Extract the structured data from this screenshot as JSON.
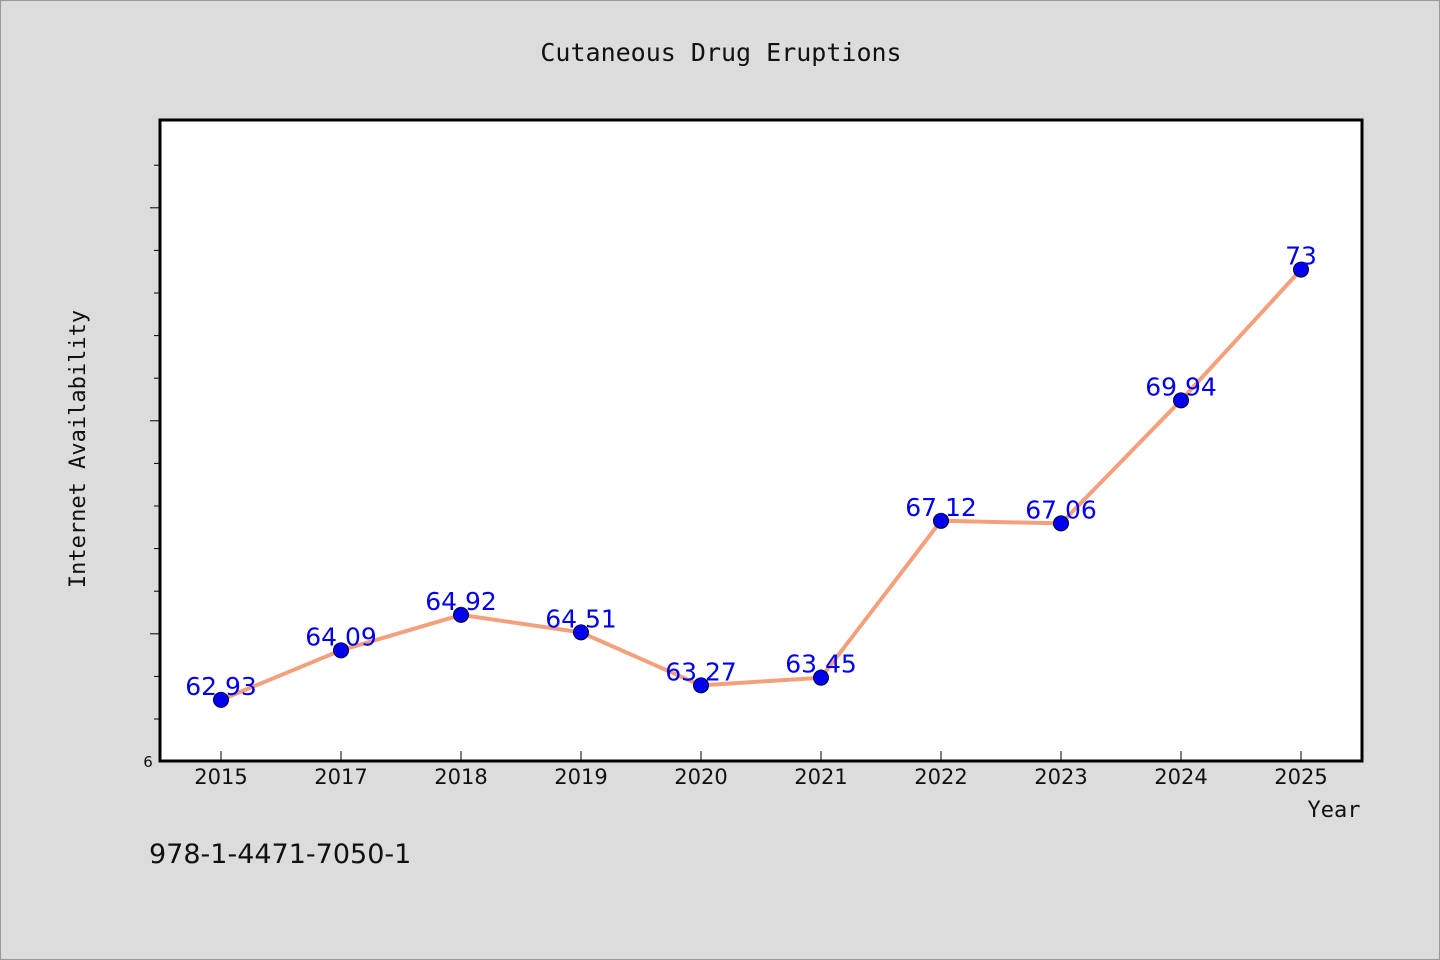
{
  "chart_data": {
    "type": "line",
    "title": "Cutaneous Drug Eruptions",
    "xlabel": "Year",
    "ylabel": "Internet Availability",
    "categories": [
      "2015",
      "2017",
      "2018",
      "2019",
      "2020",
      "2021",
      "2022",
      "2023",
      "2024",
      "2025"
    ],
    "series": [
      {
        "values": [
          62.93,
          64.09,
          64.92,
          64.51,
          63.27,
          63.45,
          67.12,
          67.06,
          69.94,
          73
        ],
        "labels": [
          "62.93",
          "64.09",
          "64.92",
          "64.51",
          "63.27",
          "63.45",
          "67.12",
          "67.06",
          "69.94",
          "73"
        ],
        "line_color": "#f4a07c",
        "marker_color": "#0000ee"
      }
    ],
    "ylim": [
      61.5,
      76.5
    ],
    "y_tick_labels": [
      "6"
    ],
    "grid": false,
    "legend": "none"
  },
  "footer": {
    "text": "978-1-4471-7050-1"
  },
  "colors": {
    "background": "#dcdcdc",
    "plot_background": "#ffffff",
    "label_color": "#0000ee"
  }
}
